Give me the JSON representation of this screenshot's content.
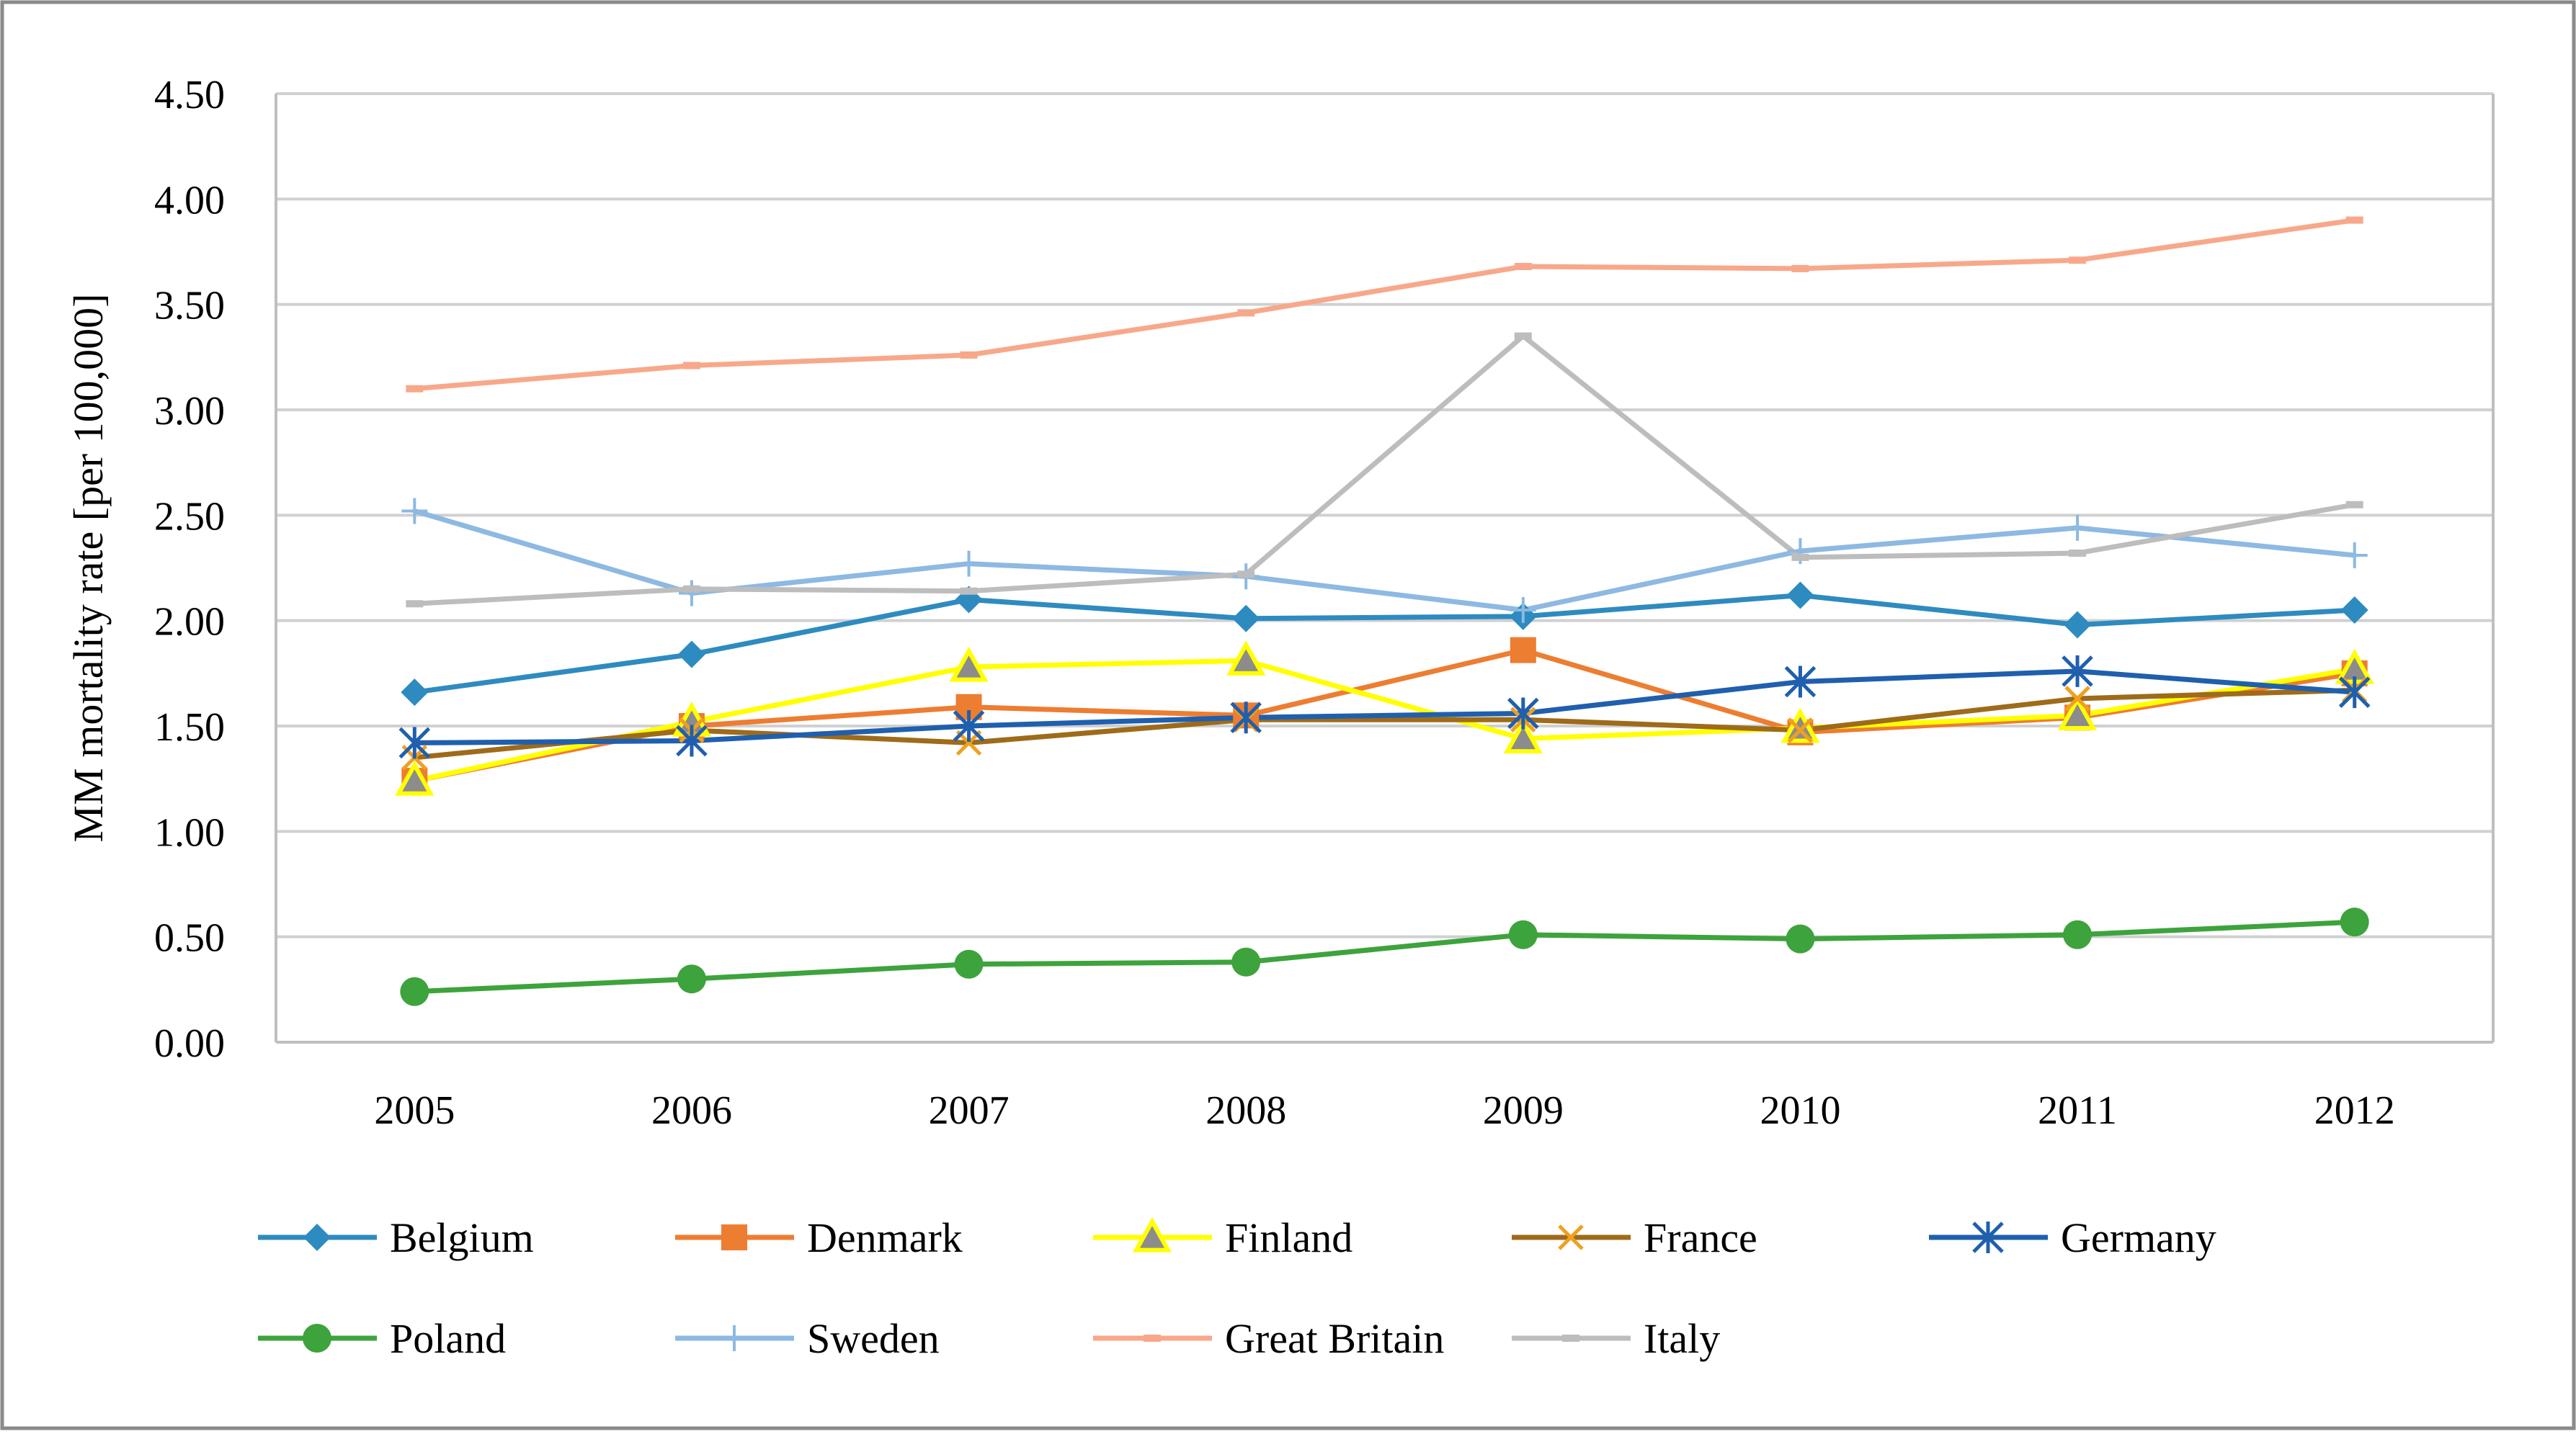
{
  "chart_data": {
    "type": "line",
    "title": "",
    "xlabel": "",
    "ylabel": "MM mortality rate [per 100,000]",
    "categories": [
      "2005",
      "2006",
      "2007",
      "2008",
      "2009",
      "2010",
      "2011",
      "2012"
    ],
    "ylim": [
      0,
      4.5
    ],
    "yticks": [
      "0.00",
      "0.50",
      "1.00",
      "1.50",
      "2.00",
      "2.50",
      "3.00",
      "3.50",
      "4.00",
      "4.50"
    ],
    "grid": true,
    "legend_position": "bottom",
    "series": [
      {
        "name": "Belgium",
        "color": "#2E8BC0",
        "marker": "diamond",
        "values": [
          1.66,
          1.84,
          2.1,
          2.01,
          2.02,
          2.12,
          1.98,
          2.05
        ]
      },
      {
        "name": "Denmark",
        "color": "#ED7D31",
        "marker": "square",
        "values": [
          1.24,
          1.5,
          1.59,
          1.55,
          1.86,
          1.47,
          1.54,
          1.75
        ]
      },
      {
        "name": "Finland",
        "color": "#FFFF00",
        "marker": "triangle",
        "values": [
          1.24,
          1.52,
          1.78,
          1.81,
          1.44,
          1.49,
          1.55,
          1.77
        ]
      },
      {
        "name": "France",
        "color": "#9E6B1A",
        "marker": "x",
        "values": [
          1.35,
          1.48,
          1.42,
          1.53,
          1.53,
          1.48,
          1.63,
          1.67
        ]
      },
      {
        "name": "Germany",
        "color": "#1F5FAE",
        "marker": "star",
        "values": [
          1.42,
          1.43,
          1.5,
          1.54,
          1.56,
          1.71,
          1.76,
          1.66
        ]
      },
      {
        "name": "Poland",
        "color": "#3DA33D",
        "marker": "circle",
        "values": [
          0.24,
          0.3,
          0.37,
          0.38,
          0.51,
          0.49,
          0.51,
          0.57
        ]
      },
      {
        "name": "Sweden",
        "color": "#8DB9E2",
        "marker": "plus",
        "values": [
          2.52,
          2.13,
          2.27,
          2.21,
          2.05,
          2.33,
          2.44,
          2.31
        ]
      },
      {
        "name": "Great Britain",
        "color": "#F8A88A",
        "marker": "dash",
        "values": [
          3.1,
          3.21,
          3.26,
          3.46,
          3.68,
          3.67,
          3.71,
          3.9
        ]
      },
      {
        "name": "Italy",
        "color": "#BDBDBD",
        "marker": "dash",
        "values": [
          2.08,
          2.15,
          2.14,
          2.22,
          3.35,
          2.3,
          2.32,
          2.55
        ]
      }
    ]
  }
}
